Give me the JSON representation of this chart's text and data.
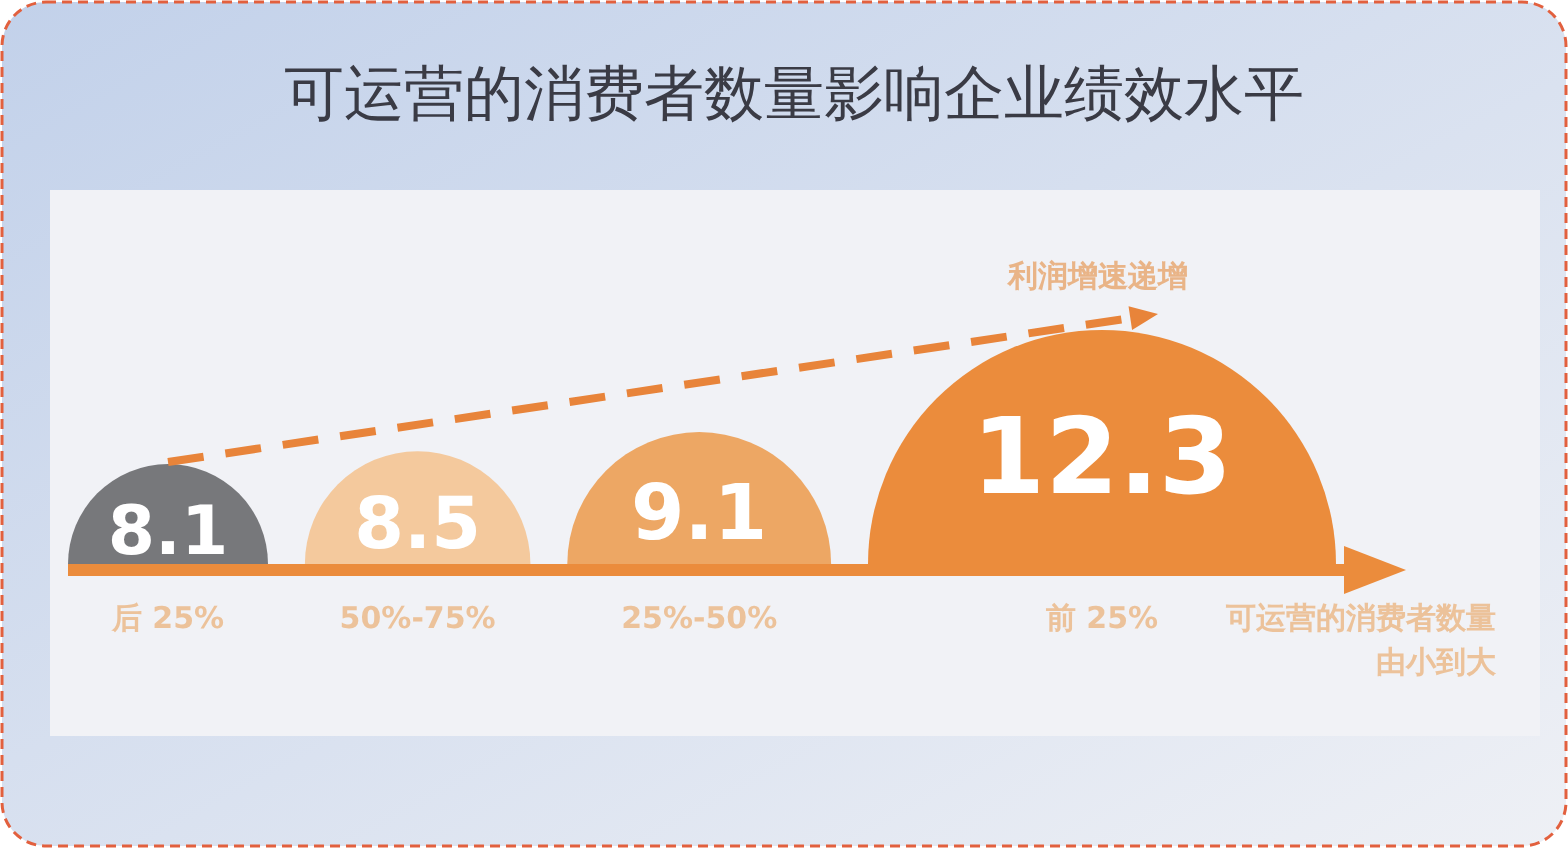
{
  "chart_data": {
    "type": "other",
    "title": "可运营的消费者数量影响企业绩效水平",
    "xlabel": "可运营的消费者数量由小到大",
    "categories": [
      "后 25%",
      "50%-75%",
      "25%-50%",
      "前 25%"
    ],
    "values": [
      8.1,
      8.5,
      9.1,
      12.3
    ],
    "colors": [
      "#77787b",
      "#f4c99d",
      "#eda764",
      "#eb8c3c"
    ],
    "data_labels": true,
    "annotations": [
      "利润增速递增"
    ]
  }
}
